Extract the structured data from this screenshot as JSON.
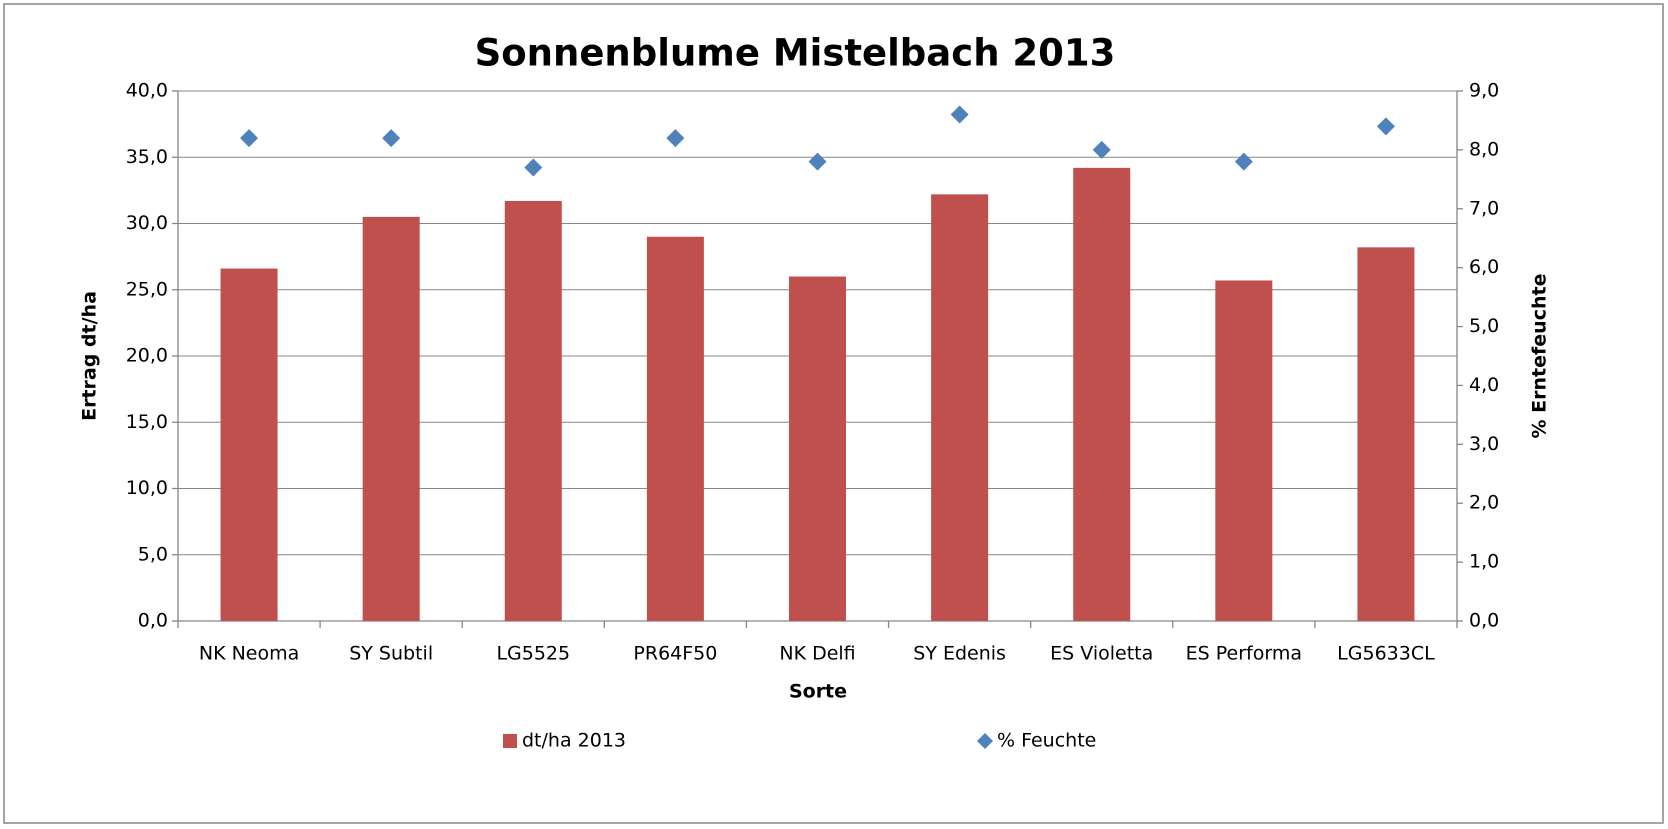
{
  "chart_data": {
    "type": "bar",
    "title": "Sonnenblume Mistelbach 2013",
    "x_label": "Sorte",
    "y_label": "Ertrag dt/ha",
    "y2_label": "% Erntefeuchte",
    "categories": [
      "NK Neoma",
      "SY Subtil",
      "LG5525",
      "PR64F50",
      "NK Delfi",
      "SY Edenis",
      "ES Violetta",
      "ES Performa",
      "LG5633CL"
    ],
    "series": [
      {
        "name": "dt/ha 2013",
        "type": "bar",
        "color": "#c0504d",
        "values": [
          26.6,
          30.5,
          31.7,
          29.0,
          26.0,
          32.2,
          34.2,
          25.7,
          28.2
        ]
      },
      {
        "name": "% Feuchte",
        "type": "scatter",
        "axis": "y2",
        "color": "#4f81bd",
        "values": [
          8.2,
          8.2,
          7.7,
          8.2,
          7.8,
          8.6,
          8.0,
          7.8,
          8.4
        ]
      }
    ],
    "ylim": [
      0,
      40
    ],
    "yticks": [
      {
        "value": 0,
        "label": "0,0"
      },
      {
        "value": 5,
        "label": "5,0"
      },
      {
        "value": 10,
        "label": "10,0"
      },
      {
        "value": 15,
        "label": "15,0"
      },
      {
        "value": 20,
        "label": "20,0"
      },
      {
        "value": 25,
        "label": "25,0"
      },
      {
        "value": 30,
        "label": "30,0"
      },
      {
        "value": 35,
        "label": "35,0"
      },
      {
        "value": 40,
        "label": "40,0"
      }
    ],
    "y2lim": [
      0,
      9
    ],
    "y2ticks": [
      {
        "value": 0,
        "label": "0,0"
      },
      {
        "value": 1,
        "label": "1,0"
      },
      {
        "value": 2,
        "label": "2,0"
      },
      {
        "value": 3,
        "label": "3,0"
      },
      {
        "value": 4,
        "label": "4,0"
      },
      {
        "value": 5,
        "label": "5,0"
      },
      {
        "value": 6,
        "label": "6,0"
      },
      {
        "value": 7,
        "label": "7,0"
      },
      {
        "value": 8,
        "label": "8,0"
      },
      {
        "value": 9,
        "label": "9,0"
      }
    ],
    "grid": true,
    "legend": "bottom"
  }
}
